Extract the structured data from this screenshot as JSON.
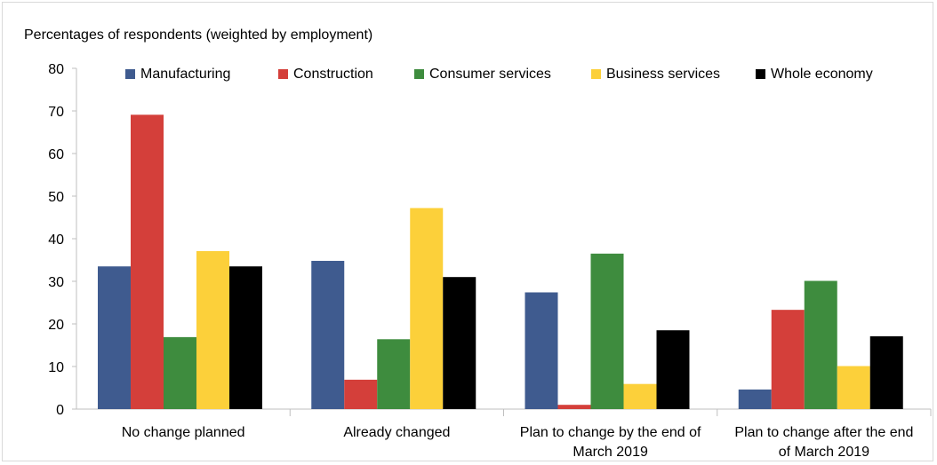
{
  "chart_data": {
    "type": "bar",
    "title": "Percentages of respondents (weighted by employment)",
    "xlabel": "",
    "ylabel": "",
    "ylim": [
      0,
      80
    ],
    "yticks": [
      0,
      10,
      20,
      30,
      40,
      50,
      60,
      70,
      80
    ],
    "grid": false,
    "legend_position": "top",
    "categories": [
      [
        "No change planned"
      ],
      [
        "Already changed"
      ],
      [
        "Plan to change by the end of",
        "March 2019"
      ],
      [
        "Plan to change after the end",
        "of March 2019"
      ]
    ],
    "series": [
      {
        "name": "Manufacturing",
        "color": "#3f5b8f",
        "values": [
          33.5,
          34.8,
          27.4,
          4.6
        ]
      },
      {
        "name": "Construction",
        "color": "#d43f3a",
        "values": [
          69.1,
          6.9,
          1.0,
          23.3
        ]
      },
      {
        "name": "Consumer services",
        "color": "#3e8c3e",
        "values": [
          16.9,
          16.4,
          36.5,
          30.1
        ]
      },
      {
        "name": "Business services",
        "color": "#fcd03a",
        "values": [
          37.1,
          47.2,
          5.9,
          10.1
        ]
      },
      {
        "name": "Whole economy",
        "color": "#000000",
        "values": [
          33.5,
          31.0,
          18.5,
          17.1
        ]
      }
    ]
  }
}
